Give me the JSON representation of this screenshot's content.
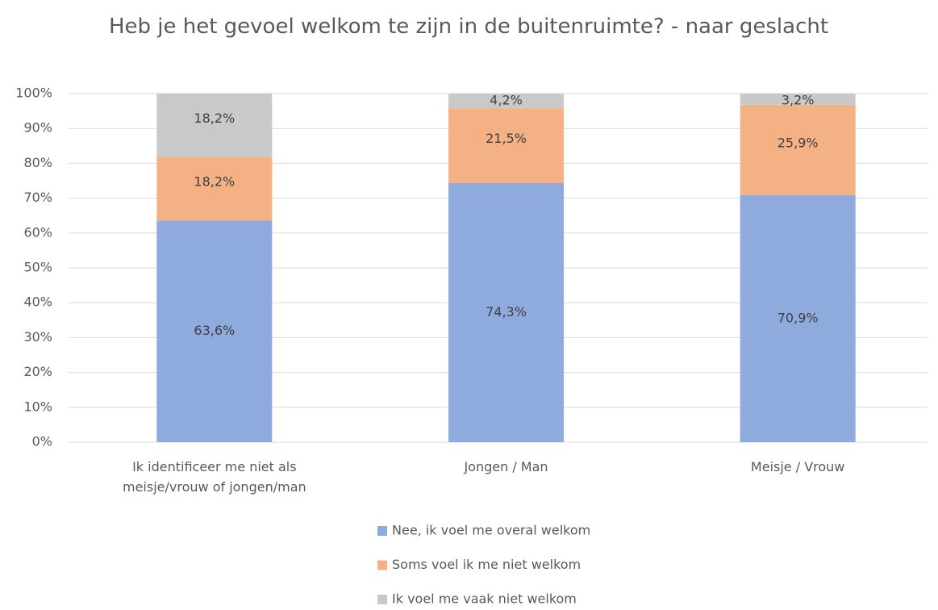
{
  "chart_data": {
    "type": "stacked_bar",
    "title": "Heb je het gevoel welkom te zijn in de buitenruimte? - naar geslacht",
    "categories": [
      "Ik identificeer me niet als meisje/vrouw of jongen/man",
      "Jongen / Man",
      "Meisje / Vrouw"
    ],
    "series": [
      {
        "name": "Nee, ik voel me overal welkom",
        "color": "#8faadc",
        "values": [
          63.6,
          74.3,
          70.9
        ],
        "value_labels": [
          "63,6%",
          "74,3%",
          "70,9%"
        ]
      },
      {
        "name": "Soms voel ik me niet welkom",
        "color": "#f4b183",
        "values": [
          18.2,
          21.5,
          25.9
        ],
        "value_labels": [
          "18,2%",
          "21,5%",
          "25,9%"
        ]
      },
      {
        "name": "Ik voel me vaak niet welkom",
        "color": "#c9c9c9",
        "values": [
          18.2,
          4.2,
          3.2
        ],
        "value_labels": [
          "18,2%",
          "4,2%",
          "3,2%"
        ]
      }
    ],
    "ylim": [
      0,
      100
    ],
    "yticks": [
      {
        "value": 0,
        "label": "0%"
      },
      {
        "value": 10,
        "label": "10%"
      },
      {
        "value": 20,
        "label": "20%"
      },
      {
        "value": 30,
        "label": "30%"
      },
      {
        "value": 40,
        "label": "40%"
      },
      {
        "value": 50,
        "label": "50%"
      },
      {
        "value": 60,
        "label": "60%"
      },
      {
        "value": 70,
        "label": "70%"
      },
      {
        "value": 80,
        "label": "80%"
      },
      {
        "value": 90,
        "label": "90%"
      },
      {
        "value": 100,
        "label": "100%"
      }
    ],
    "grid": true,
    "legend": "bottom"
  }
}
